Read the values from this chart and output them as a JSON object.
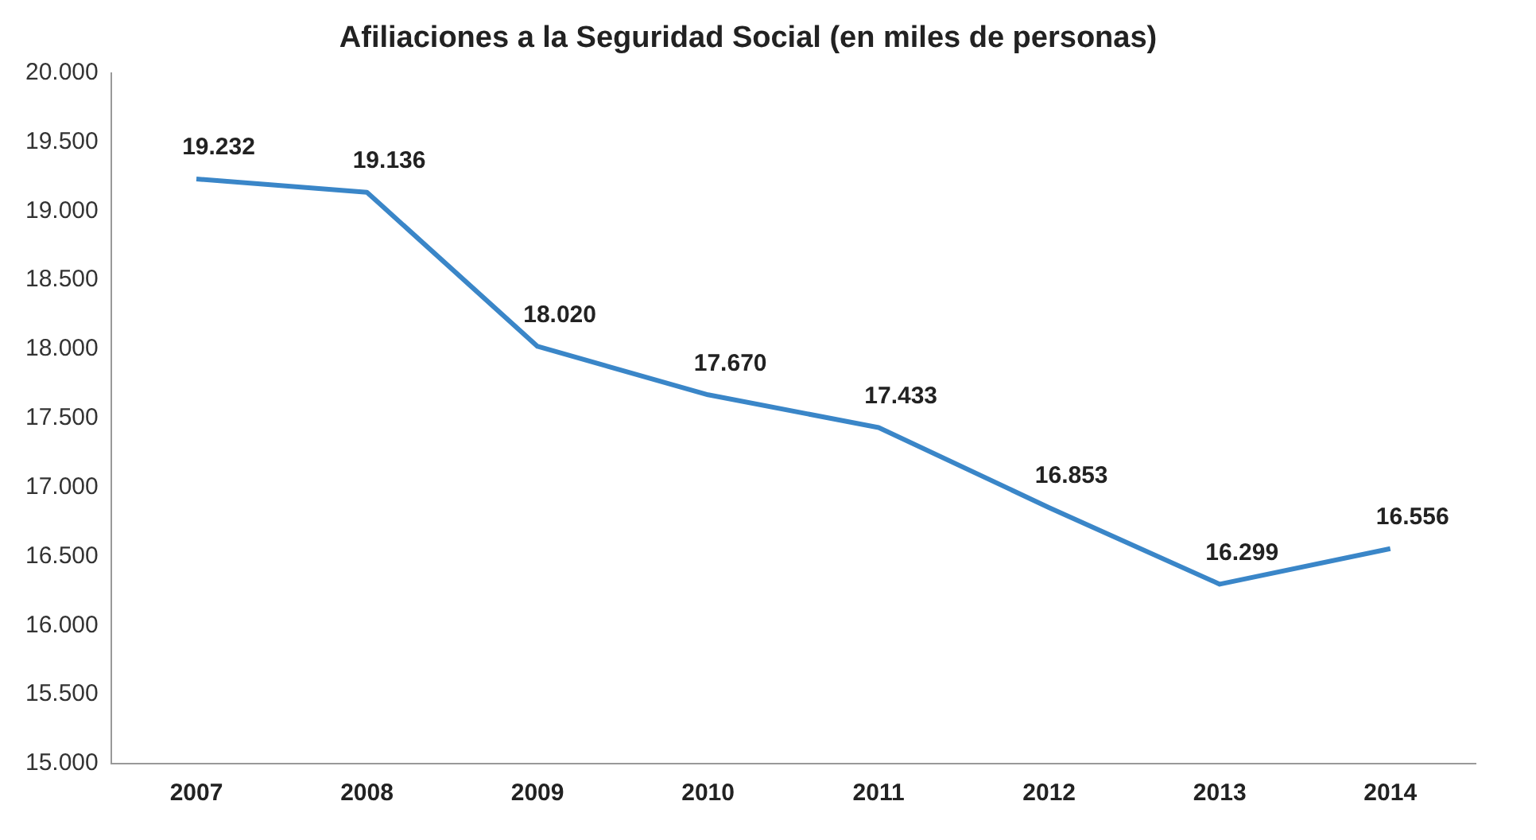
{
  "chart_data": {
    "type": "line",
    "title": "Afiliaciones a la Seguridad Social (en miles de personas)",
    "categories": [
      "2007",
      "2008",
      "2009",
      "2010",
      "2011",
      "2012",
      "2013",
      "2014"
    ],
    "series": [
      {
        "color": "#3a86c8",
        "values": [
          19232,
          19136,
          18020,
          17670,
          17433,
          16853,
          16299,
          16556
        ],
        "value_labels": [
          "19.232",
          "19.136",
          "18.020",
          "17.670",
          "17.433",
          "16.853",
          "16.299",
          "16.556"
        ]
      }
    ],
    "ylim": [
      15000,
      20000
    ],
    "yticks": [
      {
        "value": 15000,
        "label": "15.000"
      },
      {
        "value": 15500,
        "label": "15.500"
      },
      {
        "value": 16000,
        "label": "16.000"
      },
      {
        "value": 16500,
        "label": "16.500"
      },
      {
        "value": 17000,
        "label": "17.000"
      },
      {
        "value": 17500,
        "label": "17.500"
      },
      {
        "value": 18000,
        "label": "18.000"
      },
      {
        "value": 18500,
        "label": "18.500"
      },
      {
        "value": 19000,
        "label": "19.000"
      },
      {
        "value": 19500,
        "label": "19.500"
      },
      {
        "value": 20000,
        "label": "20.000"
      }
    ],
    "grid": false,
    "legend": false,
    "marker": "none",
    "line_style": "solid"
  }
}
